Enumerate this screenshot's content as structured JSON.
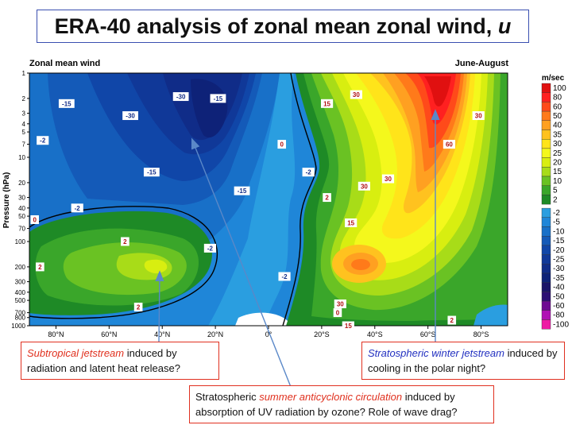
{
  "slide": {
    "title_main": "ERA-40 analysis of zonal mean zonal wind, ",
    "title_var": "u"
  },
  "chart_data": {
    "type": "contour",
    "panel_left_label": "Zonal mean wind",
    "panel_right_label": "June-August",
    "ylabel": "Pressure (hPa)",
    "y_scale": "log",
    "ylim": [
      1000,
      1
    ],
    "y_ticks": [
      "1",
      "2",
      "3",
      "4",
      "5",
      "7",
      "10",
      "20",
      "30",
      "40",
      "50",
      "70",
      "100",
      "200",
      "300",
      "400",
      "500",
      "700",
      "800",
      "1000"
    ],
    "xlim": [
      90,
      -90
    ],
    "x_ticks": [
      "80°N",
      "60°N",
      "40°N",
      "20°N",
      "0°",
      "20°S",
      "40°S",
      "60°S",
      "80°S"
    ],
    "colorbar_unit": "m/sec",
    "colorbar_levels": [
      "100",
      "80",
      "60",
      "50",
      "40",
      "35",
      "30",
      "25",
      "20",
      "15",
      "10",
      "5",
      "2",
      "-2",
      "-5",
      "-10",
      "-15",
      "-20",
      "-25",
      "-30",
      "-35",
      "-40",
      "-50",
      "-60",
      "-80",
      "-100"
    ],
    "colorbar_colors": [
      "#e01010",
      "#ff2020",
      "#ff4a1a",
      "#ff7a1a",
      "#ffa021",
      "#ffc21f",
      "#ffe41a",
      "#f4f81c",
      "#d8ee10",
      "#a8dc18",
      "#6ac223",
      "#3aa62a",
      "#1e8a26",
      "#2a9ee0",
      "#1f86d8",
      "#1870c8",
      "#145ab8",
      "#1046a8",
      "#103898",
      "#102c88",
      "#0e2278",
      "#1a1468",
      "#2c0e74",
      "#6e0a92",
      "#b010b4",
      "#ee1aa4"
    ],
    "contour_labels": [
      {
        "value": "-15",
        "lat": 76,
        "p": 2.3
      },
      {
        "value": "-30",
        "lat": 52,
        "p": 3.2
      },
      {
        "value": "-30",
        "lat": 33,
        "p": 1.9
      },
      {
        "value": "-15",
        "lat": 19,
        "p": 2.0
      },
      {
        "value": "-2",
        "lat": 85,
        "p": 6.3
      },
      {
        "value": "-15",
        "lat": 44,
        "p": 15
      },
      {
        "value": "-15",
        "lat": 10,
        "p": 25
      },
      {
        "value": "-2",
        "lat": 72,
        "p": 40
      },
      {
        "value": "2",
        "lat": 54,
        "p": 100
      },
      {
        "value": "2",
        "lat": 86,
        "p": 200
      },
      {
        "value": "2",
        "lat": 49,
        "p": 600
      },
      {
        "value": "-2",
        "lat": 22,
        "p": 120
      },
      {
        "value": "-2",
        "lat": -6,
        "p": 260
      },
      {
        "value": "-2",
        "lat": -15,
        "p": 15
      },
      {
        "value": "2",
        "lat": -22,
        "p": 30
      },
      {
        "value": "15",
        "lat": -22,
        "p": 2.3
      },
      {
        "value": "15",
        "lat": -31,
        "p": 60
      },
      {
        "value": "30",
        "lat": -33,
        "p": 1.8
      },
      {
        "value": "30",
        "lat": -36,
        "p": 22
      },
      {
        "value": "30",
        "lat": -45,
        "p": 18
      },
      {
        "value": "30",
        "lat": -27,
        "p": 550
      },
      {
        "value": "15",
        "lat": -30,
        "p": 1000
      },
      {
        "value": "60",
        "lat": -68,
        "p": 7.0
      },
      {
        "value": "30",
        "lat": -79,
        "p": 3.2
      },
      {
        "value": "2",
        "lat": -69,
        "p": 860
      },
      {
        "value": "0",
        "lat": -5,
        "p": 7
      },
      {
        "value": "0",
        "lat": 88,
        "p": 55
      },
      {
        "value": "0",
        "lat": -26,
        "p": 700
      }
    ],
    "features": [
      {
        "name": "Subtropical jetstream core",
        "lat": 40,
        "p": 200,
        "value": 25
      },
      {
        "name": "Summer stratospheric easterly core",
        "lat": 45,
        "p": 5,
        "value": -35
      },
      {
        "name": "Winter stratospheric jet core",
        "lat": -60,
        "p": 3,
        "value": 90
      },
      {
        "name": "Southern subtropical jet core",
        "lat": -30,
        "p": 200,
        "value": 50
      }
    ]
  },
  "callouts": {
    "left_red": "Subtropical jetstream",
    "left_rest": " induced by radiation and latent heat release?",
    "right_blue": "Stratospheric winter jetstream",
    "right_rest": " induced by cooling in the polar night?",
    "middle_pre": "Stratospheric ",
    "middle_red": "summer anticyclonic circulation",
    "middle_rest": " induced by absorption of UV radiation by ozone? Role of wave drag?"
  }
}
